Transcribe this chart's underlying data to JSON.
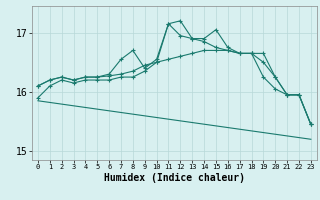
{
  "title": "",
  "xlabel": "Humidex (Indice chaleur)",
  "ylabel": "",
  "xlim": [
    -0.5,
    23.5
  ],
  "ylim": [
    14.85,
    17.45
  ],
  "yticks": [
    15,
    16,
    17
  ],
  "xticks": [
    0,
    1,
    2,
    3,
    4,
    5,
    6,
    7,
    8,
    9,
    10,
    11,
    12,
    13,
    14,
    15,
    16,
    17,
    18,
    19,
    20,
    21,
    22,
    23
  ],
  "bg_color": "#d8f0f0",
  "line_color": "#1a7a6e",
  "grid_color": "#b8d8d8",
  "lines": [
    {
      "x": [
        0,
        1,
        2,
        3,
        4,
        5,
        6,
        7,
        8,
        9,
        10,
        11,
        12,
        13,
        14,
        15,
        16,
        17,
        18,
        19,
        20,
        21,
        22,
        23
      ],
      "y": [
        15.9,
        16.1,
        16.2,
        16.15,
        16.2,
        16.2,
        16.2,
        16.25,
        16.25,
        16.35,
        16.5,
        17.15,
        16.95,
        16.9,
        16.9,
        17.05,
        16.75,
        16.65,
        16.65,
        16.25,
        16.05,
        15.95,
        15.95,
        15.45
      ],
      "marker": "+"
    },
    {
      "x": [
        0,
        1,
        2,
        3,
        4,
        5,
        6,
        7,
        8,
        9,
        10,
        11,
        12,
        13,
        14,
        15,
        16,
        17,
        18,
        19,
        20,
        21,
        22,
        23
      ],
      "y": [
        16.1,
        16.2,
        16.25,
        16.2,
        16.25,
        16.25,
        16.3,
        16.55,
        16.7,
        16.4,
        16.55,
        17.15,
        17.2,
        16.9,
        16.85,
        16.75,
        16.7,
        16.65,
        16.65,
        16.65,
        16.25,
        15.95,
        15.95,
        15.45
      ],
      "marker": "+"
    },
    {
      "x": [
        0,
        1,
        2,
        3,
        4,
        5,
        6,
        7,
        8,
        9,
        10,
        11,
        12,
        13,
        14,
        15,
        16,
        17,
        18,
        19,
        20,
        21,
        22,
        23
      ],
      "y": [
        16.1,
        16.2,
        16.25,
        16.2,
        16.25,
        16.25,
        16.27,
        16.3,
        16.35,
        16.45,
        16.5,
        16.55,
        16.6,
        16.65,
        16.7,
        16.7,
        16.7,
        16.65,
        16.65,
        16.5,
        16.25,
        15.95,
        15.95,
        15.45
      ],
      "marker": "+"
    },
    {
      "x": [
        0,
        23
      ],
      "y": [
        15.85,
        15.2
      ],
      "marker": null
    }
  ]
}
